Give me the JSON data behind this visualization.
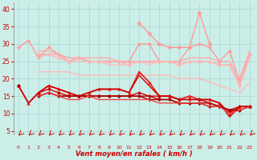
{
  "xlabel": "Vent moyen/en rafales ( km/h )",
  "bg_color": "#cceee8",
  "grid_color": "#b0ddd8",
  "x_values": [
    0,
    1,
    2,
    3,
    4,
    5,
    6,
    7,
    8,
    9,
    10,
    11,
    12,
    13,
    14,
    15,
    16,
    17,
    18,
    19,
    20,
    21,
    22,
    23
  ],
  "ylim": [
    4,
    42
  ],
  "yticks": [
    5,
    10,
    15,
    20,
    25,
    30,
    35,
    40
  ],
  "series": [
    {
      "data": [
        29,
        31,
        26,
        29,
        27,
        25,
        26,
        25,
        25,
        25,
        25,
        25,
        30,
        30,
        25,
        25,
        25,
        29,
        30,
        29,
        25,
        28,
        19,
        27
      ],
      "color": "#ff9999",
      "lw": 1.0,
      "marker": "D",
      "ms": 2.0
    },
    {
      "data": [
        29,
        null,
        28,
        28,
        27,
        26,
        26,
        26,
        26,
        26,
        25,
        25,
        25,
        25,
        25,
        25,
        25,
        26,
        26,
        26,
        25,
        25,
        20,
        28
      ],
      "color": "#ffaaaa",
      "lw": 1.0,
      "marker": null,
      "ms": 0
    },
    {
      "data": [
        29,
        null,
        27,
        27,
        27,
        26,
        26,
        25,
        25,
        25,
        25,
        25,
        25,
        25,
        25,
        25,
        24,
        25,
        25,
        25,
        24,
        24,
        19,
        27
      ],
      "color": "#ffaaaa",
      "lw": 1.0,
      "marker": null,
      "ms": 0
    },
    {
      "data": [
        29,
        null,
        27,
        27,
        26,
        25,
        26,
        25,
        25,
        25,
        25,
        24,
        25,
        25,
        25,
        25,
        24,
        25,
        25,
        25,
        24,
        24,
        18,
        27
      ],
      "color": "#ffaaaa",
      "lw": 1.0,
      "marker": "D",
      "ms": 2.0
    },
    {
      "data": [
        29,
        null,
        26,
        27,
        26,
        25,
        25,
        25,
        25,
        24,
        24,
        24,
        25,
        24,
        25,
        25,
        24,
        25,
        25,
        25,
        24,
        24,
        18,
        26
      ],
      "color": "#ffbbbb",
      "lw": 1.0,
      "marker": null,
      "ms": 0
    },
    {
      "data": [
        28,
        null,
        22,
        22,
        22,
        22,
        21,
        21,
        21,
        21,
        21,
        21,
        21,
        21,
        21,
        21,
        20,
        20,
        20,
        19,
        18,
        17,
        16,
        19
      ],
      "color": "#ffbbbb",
      "lw": 1.0,
      "marker": null,
      "ms": 0
    },
    {
      "data": [
        null,
        null,
        null,
        null,
        null,
        null,
        null,
        null,
        null,
        null,
        null,
        null,
        36,
        33,
        30,
        29,
        29,
        29,
        39,
        30,
        null,
        null,
        null,
        null
      ],
      "color": "#ff9999",
      "lw": 1.0,
      "marker": "D",
      "ms": 2.5
    },
    {
      "data": [
        18,
        13,
        16,
        18,
        17,
        16,
        15,
        16,
        17,
        17,
        17,
        16,
        22,
        19,
        15,
        15,
        14,
        15,
        14,
        14,
        13,
        10,
        12,
        12
      ],
      "color": "#ee2222",
      "lw": 1.3,
      "marker": "^",
      "ms": 2.5
    },
    {
      "data": [
        18,
        13,
        16,
        18,
        17,
        16,
        15,
        16,
        17,
        17,
        17,
        16,
        21,
        18,
        15,
        15,
        14,
        14,
        14,
        14,
        13,
        9,
        12,
        12
      ],
      "color": "#cc0000",
      "lw": 1.0,
      "marker": null,
      "ms": 0
    },
    {
      "data": [
        18,
        null,
        16,
        17,
        16,
        15,
        15,
        15,
        15,
        15,
        15,
        15,
        16,
        15,
        15,
        15,
        14,
        14,
        14,
        13,
        12,
        11,
        12,
        12
      ],
      "color": "#cc0000",
      "lw": 1.0,
      "marker": "D",
      "ms": 2.0
    },
    {
      "data": [
        18,
        null,
        15,
        16,
        15,
        15,
        15,
        15,
        15,
        15,
        15,
        15,
        15,
        15,
        14,
        14,
        13,
        13,
        13,
        13,
        12,
        11,
        11,
        12
      ],
      "color": "#bb0000",
      "lw": 1.0,
      "marker": null,
      "ms": 0
    },
    {
      "data": [
        18,
        null,
        15,
        16,
        15,
        15,
        15,
        15,
        15,
        15,
        15,
        15,
        15,
        14,
        14,
        14,
        13,
        13,
        13,
        12,
        12,
        11,
        11,
        12
      ],
      "color": "#aa0000",
      "lw": 1.0,
      "marker": "D",
      "ms": 2.0
    },
    {
      "data": [
        18,
        null,
        15,
        16,
        15,
        14,
        14,
        15,
        14,
        14,
        14,
        14,
        14,
        14,
        13,
        13,
        13,
        13,
        13,
        12,
        12,
        10,
        11,
        12
      ],
      "color": "#ee4444",
      "lw": 1.0,
      "marker": null,
      "ms": 0
    }
  ],
  "tick_label_color": "#cc0000",
  "axis_label_color": "#cc0000"
}
